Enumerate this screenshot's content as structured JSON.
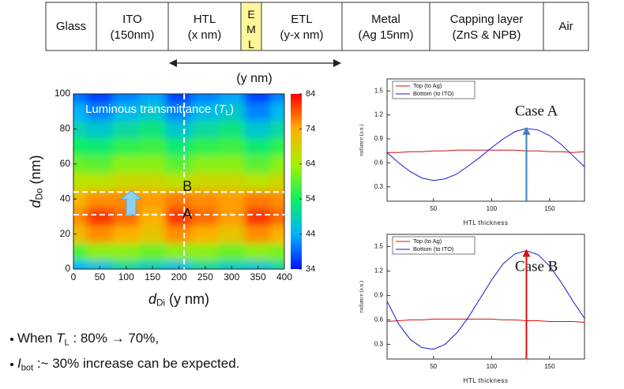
{
  "layer_stack": {
    "layers": [
      {
        "name": "Glass"
      },
      {
        "name": "ITO",
        "thickness": "(150nm)"
      },
      {
        "name": "HTL",
        "thickness": "(x nm)"
      },
      {
        "name": "EML",
        "highlight": "#fff59a"
      },
      {
        "name": "ETL",
        "thickness": "(y-x nm)"
      },
      {
        "name": "Metal",
        "thickness": "(Ag 15nm)"
      },
      {
        "name": "Capping layer",
        "thickness": "(ZnS & NPB)"
      },
      {
        "name": "Air"
      }
    ],
    "span_label": "(y nm)"
  },
  "chart_data": [
    {
      "type": "heatmap",
      "title": {
        "text": "Luminous transmittance (",
        "var": "T",
        "sub": "L",
        "end": ")"
      },
      "x_label": {
        "var": "d",
        "sub": "Di",
        "end": " (y nm)"
      },
      "y_label": {
        "var": "d",
        "sub": "Do",
        "end": " (nm)"
      },
      "x": [
        0,
        50,
        100,
        150,
        200,
        250,
        300,
        350,
        400
      ],
      "y": [
        0,
        10,
        20,
        30,
        40,
        50,
        60,
        70,
        80,
        90,
        100
      ],
      "z": [
        [
          44,
          46,
          50,
          48,
          46,
          50,
          48,
          47,
          50
        ],
        [
          58,
          62,
          62,
          60,
          62,
          62,
          60,
          62,
          61
        ],
        [
          72,
          76,
          74,
          71,
          76,
          74,
          71,
          76,
          74
        ],
        [
          76,
          81,
          78,
          74,
          81,
          78,
          75,
          81,
          78
        ],
        [
          73,
          76,
          76,
          75,
          77,
          76,
          75,
          77,
          76
        ],
        [
          66,
          66,
          68,
          68,
          66,
          68,
          68,
          66,
          68
        ],
        [
          60,
          59,
          62,
          62,
          59,
          62,
          62,
          59,
          62
        ],
        [
          54,
          53,
          56,
          57,
          53,
          56,
          57,
          53,
          56
        ],
        [
          49,
          47,
          50,
          52,
          47,
          50,
          52,
          47,
          50
        ],
        [
          44,
          41,
          45,
          47,
          41,
          45,
          47,
          41,
          45
        ],
        [
          40,
          37,
          41,
          43,
          37,
          41,
          43,
          37,
          41
        ]
      ],
      "xlim": [
        0,
        400
      ],
      "xticks": [
        0,
        50,
        100,
        150,
        200,
        250,
        300,
        350,
        400
      ],
      "ylim": [
        0,
        100
      ],
      "yticks": [
        0,
        20,
        40,
        60,
        80,
        100
      ],
      "zlim": [
        34,
        84
      ],
      "zticks": [
        34,
        44,
        54,
        64,
        74,
        84
      ],
      "colorscale": [
        "#0010ff",
        "#00b4ff",
        "#10f060",
        "#a8f000",
        "#ffb000",
        "#ff0000"
      ],
      "markers": [
        {
          "label": "A",
          "x": 210,
          "y": 31
        },
        {
          "label": "B",
          "x": 210,
          "y": 44
        }
      ]
    },
    {
      "type": "line",
      "annotation": "Case A",
      "x_label": "HTL thickness",
      "y_label": "radiance (a.u.)",
      "x": [
        10,
        20,
        30,
        40,
        50,
        60,
        70,
        80,
        90,
        100,
        110,
        120,
        130,
        140,
        150,
        160,
        170,
        180
      ],
      "series": [
        {
          "name": "Top (to Ag)",
          "color": "#d01010",
          "values": [
            0.73,
            0.73,
            0.74,
            0.74,
            0.75,
            0.75,
            0.76,
            0.76,
            0.76,
            0.76,
            0.76,
            0.76,
            0.75,
            0.75,
            0.74,
            0.74,
            0.73,
            0.74
          ]
        },
        {
          "name": "Bottom (to ITO)",
          "color": "#1a1ad0",
          "values": [
            0.73,
            0.6,
            0.49,
            0.41,
            0.38,
            0.4,
            0.46,
            0.56,
            0.67,
            0.79,
            0.9,
            0.99,
            1.03,
            1.01,
            0.94,
            0.83,
            0.69,
            0.55
          ]
        }
      ],
      "xlim": [
        10,
        180
      ],
      "xticks": [
        50,
        100,
        150
      ],
      "ylim": [
        0.12,
        1.65
      ],
      "yticks": [
        0.3,
        0.6,
        0.9,
        1.2,
        1.5
      ],
      "arrow": {
        "x": 130,
        "y": 1.03,
        "color": "#3a80b8"
      }
    },
    {
      "type": "line",
      "annotation": "Case B",
      "x_label": "HTL thickness",
      "y_label": "radiance (a.u.)",
      "x": [
        10,
        20,
        30,
        40,
        50,
        60,
        70,
        80,
        90,
        100,
        110,
        120,
        130,
        140,
        150,
        160,
        170,
        180
      ],
      "series": [
        {
          "name": "Top (to Ag)",
          "color": "#d01010",
          "values": [
            0.58,
            0.59,
            0.6,
            0.6,
            0.61,
            0.61,
            0.61,
            0.61,
            0.61,
            0.61,
            0.6,
            0.6,
            0.59,
            0.59,
            0.58,
            0.58,
            0.58,
            0.57
          ]
        },
        {
          "name": "Bottom (to ITO)",
          "color": "#1a1ad0",
          "values": [
            0.83,
            0.55,
            0.36,
            0.26,
            0.24,
            0.3,
            0.44,
            0.63,
            0.86,
            1.09,
            1.29,
            1.41,
            1.45,
            1.4,
            1.26,
            1.06,
            0.83,
            0.62
          ]
        }
      ],
      "xlim": [
        10,
        180
      ],
      "xticks": [
        50,
        100,
        150
      ],
      "ylim": [
        0.12,
        1.65
      ],
      "yticks": [
        0.3,
        0.6,
        0.9,
        1.2,
        1.5
      ],
      "arrow": {
        "x": 130,
        "y": 1.45,
        "color": "#d81010"
      }
    }
  ],
  "bullets": [
    {
      "text": "When ",
      "var": "T",
      "sub": "L",
      "end": " : 80% → 70%,"
    },
    {
      "var": "I",
      "sub": "bot",
      "end": " :~ 30% increase can be expected."
    }
  ]
}
